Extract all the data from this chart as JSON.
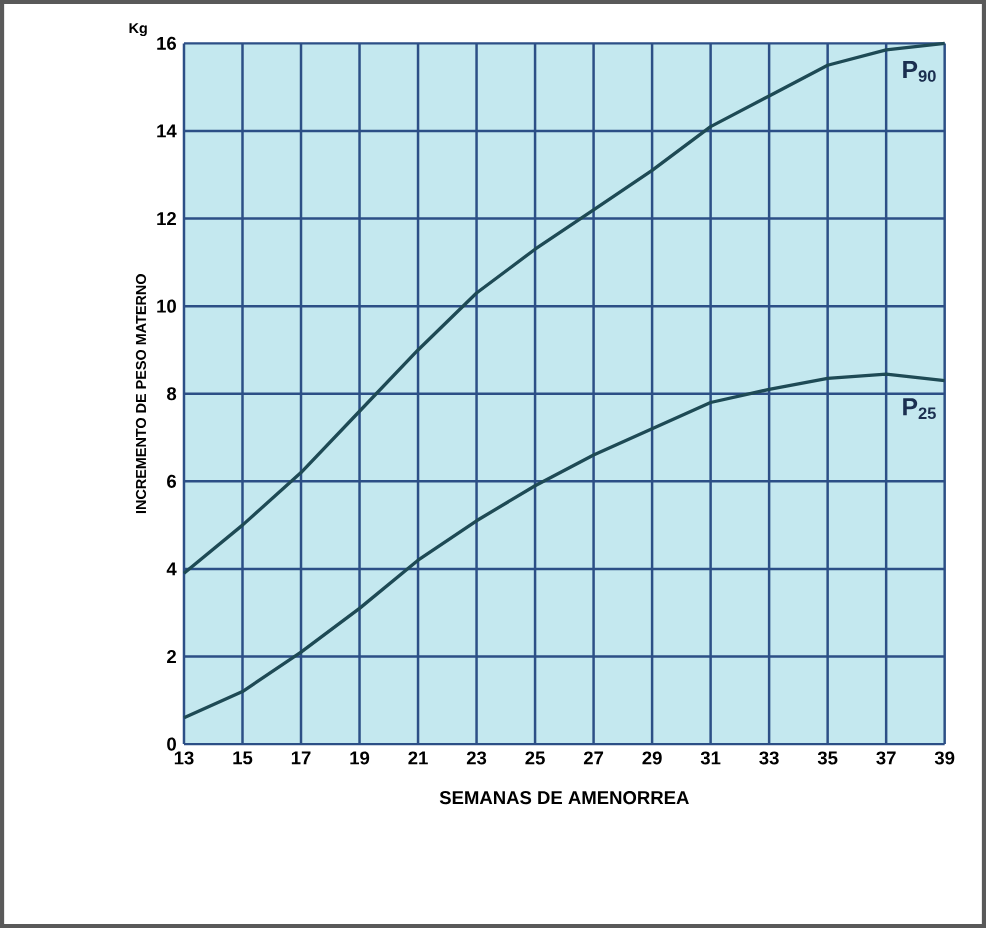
{
  "chart_data": {
    "type": "line",
    "xlabel": "SEMANAS DE AMENORREA",
    "ylabel": "INCREMENTO DE PESO MATERNO",
    "x": [
      13,
      15,
      17,
      19,
      21,
      23,
      25,
      27,
      29,
      31,
      33,
      35,
      37,
      39
    ],
    "series": [
      {
        "color": "#1e4a55",
        "values": [
          3.9,
          5.0,
          6.2,
          7.6,
          9.0,
          10.3,
          11.3,
          12.2,
          13.1,
          14.1,
          14.8,
          15.5,
          15.85,
          16.0
        ]
      },
      {
        "color": "#1e4a55",
        "values": [
          0.6,
          1.2,
          2.1,
          3.1,
          4.2,
          5.1,
          5.9,
          6.6,
          7.2,
          7.8,
          8.1,
          8.35,
          8.45,
          8.3
        ]
      }
    ],
    "annotations": [
      "Kg",
      {
        "text": "P$_{90}$",
        "x": 39,
        "y": 16
      },
      {
        "text": "P$_{25}$",
        "x": 39,
        "y": 8.3
      }
    ],
    "xlim": [
      13,
      39
    ],
    "ylim": [
      0,
      16
    ],
    "xticks": [
      13,
      15,
      17,
      19,
      21,
      23,
      25,
      27,
      29,
      31,
      33,
      35,
      37,
      39
    ],
    "yticks": [
      0,
      2,
      4,
      6,
      8,
      10,
      12,
      14,
      16
    ],
    "grid": true,
    "marker": "none",
    "line_style": "solid"
  }
}
